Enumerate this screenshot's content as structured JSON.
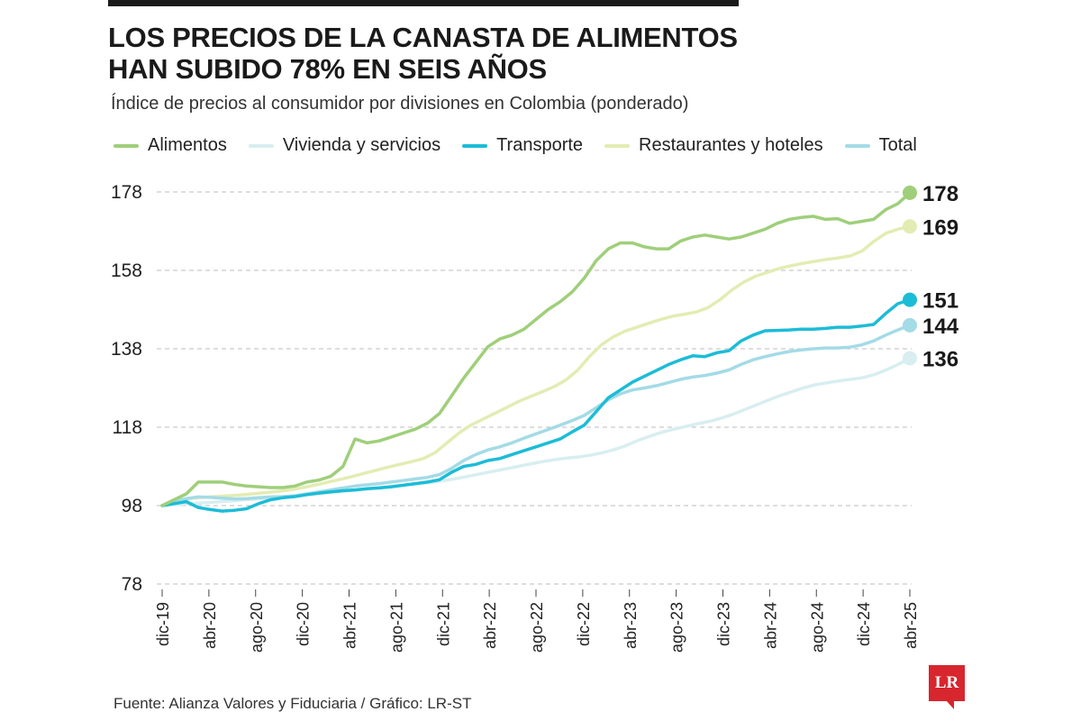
{
  "header": {
    "title_line1": "LOS PRECIOS DE LA CANASTA DE ALIMENTOS",
    "title_line2": "HAN SUBIDO 78% EN SEIS AÑOS",
    "subtitle": "Índice de precios al consumidor por divisiones en Colombia (ponderado)"
  },
  "footer": {
    "source": "Fuente: Alianza Valores y Fiduciaria / Gráfico: LR-ST",
    "logo_text": "LR"
  },
  "colors": {
    "alimentos": "#9fcf7a",
    "vivienda": "#d8eef0",
    "transporte": "#1cbcd7",
    "restaurantes": "#e3ecb3",
    "total": "#a3dbe6",
    "grid": "#bfbfbf",
    "text": "#1a1a1a",
    "logo": "#d7262e"
  },
  "chart_data": {
    "type": "line",
    "title": "LOS PRECIOS DE LA CANASTA DE ALIMENTOS HAN SUBIDO 78% EN SEIS AÑOS",
    "subtitle": "Índice de precios al consumidor por divisiones en Colombia (ponderado)",
    "y_ticks": [
      "178",
      "158",
      "138",
      "118",
      "98",
      "78"
    ],
    "ylim": [
      78,
      178
    ],
    "x_ticks": [
      "dic-19",
      "abr-20",
      "ago-20",
      "dic-20",
      "abr-21",
      "ago-21",
      "dic-21",
      "abr-22",
      "ago-22",
      "dic-22",
      "abr-23",
      "ago-23",
      "dic-23",
      "abr-24",
      "ago-24",
      "dic-24",
      "abr-25"
    ],
    "x_range": [
      "dic-19",
      "abr-25"
    ],
    "grid": true,
    "grid_style": "dashed horizontal",
    "legend_position": "top",
    "series": [
      {
        "name": "Alimentos",
        "color": "#9fcf7a",
        "end_label": "178",
        "values": [
          98.0,
          99.5,
          101.0,
          104.0,
          104.0,
          104.0,
          103.4,
          103.0,
          102.8,
          102.6,
          102.6,
          103.0,
          104.0,
          104.5,
          105.5,
          108.0,
          115.0,
          114.0,
          114.5,
          115.5,
          116.5,
          117.5,
          119.0,
          121.5,
          126.0,
          130.5,
          134.5,
          138.5,
          140.5,
          141.5,
          143.0,
          145.5,
          148.0,
          150.0,
          152.5,
          156.0,
          160.5,
          163.5,
          165.0,
          165.0,
          164.0,
          163.5,
          163.5,
          165.5,
          166.5,
          167.0,
          166.5,
          166.0,
          166.5,
          167.5,
          168.5,
          170.0,
          171.0,
          171.5,
          171.8,
          171.0,
          171.2,
          170.0,
          170.5,
          171.0,
          173.5,
          175.0,
          177.8
        ]
      },
      {
        "name": "Vivienda y servicios",
        "color": "#d8eef0",
        "end_label": "136",
        "values": [
          98.0,
          98.2,
          98.4,
          98.6,
          98.8,
          99.0,
          99.2,
          99.5,
          99.7,
          99.9,
          100.1,
          100.3,
          100.7,
          101.0,
          101.3,
          101.6,
          101.9,
          102.2,
          102.5,
          102.8,
          103.1,
          103.4,
          103.7,
          104.0,
          104.5,
          105.0,
          105.6,
          106.2,
          106.8,
          107.4,
          108.0,
          108.6,
          109.2,
          109.7,
          110.1,
          110.4,
          110.8,
          111.4,
          112.2,
          113.2,
          114.5,
          115.6,
          116.6,
          117.4,
          118.1,
          118.8,
          119.4,
          120.2,
          121.2,
          122.4,
          123.6,
          124.8,
          126.0,
          127.0,
          128.0,
          128.8,
          129.3,
          129.8,
          130.2,
          130.6,
          131.4,
          132.6,
          134.0,
          135.6
        ]
      },
      {
        "name": "Transporte",
        "color": "#1cbcd7",
        "end_label": "151",
        "values": [
          98.0,
          98.5,
          99.0,
          97.5,
          97.0,
          96.6,
          96.8,
          97.2,
          98.5,
          99.5,
          100.0,
          100.3,
          100.8,
          101.2,
          101.5,
          101.8,
          102.0,
          102.3,
          102.5,
          102.8,
          103.2,
          103.6,
          104.0,
          104.6,
          106.5,
          108.0,
          108.5,
          109.5,
          110.0,
          111.0,
          112.0,
          113.0,
          114.0,
          115.0,
          116.8,
          118.5,
          122.0,
          125.5,
          127.5,
          129.5,
          131.0,
          132.5,
          134.0,
          135.2,
          136.2,
          136.0,
          137.0,
          137.5,
          140.0,
          141.5,
          142.6,
          142.7,
          142.8,
          143.0,
          143.0,
          143.2,
          143.5,
          143.5,
          143.8,
          144.2,
          147.0,
          149.5,
          150.5
        ]
      },
      {
        "name": "Restaurantes y hoteles",
        "color": "#e3ecb3",
        "end_label": "169",
        "values": [
          98.0,
          98.8,
          99.6,
          100.0,
          100.2,
          100.4,
          100.6,
          100.8,
          101.1,
          101.4,
          101.7,
          102.1,
          102.7,
          103.3,
          104.0,
          104.7,
          105.4,
          106.2,
          107.0,
          107.8,
          108.5,
          109.2,
          110.0,
          111.5,
          114.0,
          116.5,
          118.5,
          120.0,
          121.5,
          123.0,
          124.5,
          125.8,
          127.0,
          128.3,
          130.0,
          132.5,
          136.0,
          139.0,
          141.0,
          142.5,
          143.5,
          144.5,
          145.5,
          146.3,
          146.8,
          147.4,
          148.5,
          150.5,
          153.0,
          155.0,
          156.5,
          157.5,
          158.5,
          159.2,
          159.8,
          160.3,
          160.8,
          161.2,
          161.7,
          163.0,
          165.5,
          167.5,
          168.5,
          169.2
        ]
      },
      {
        "name": "Total",
        "color": "#a3dbe6",
        "end_label": "144",
        "values": [
          98.0,
          99.0,
          99.8,
          100.2,
          100.1,
          99.9,
          99.7,
          99.8,
          100.0,
          100.2,
          100.3,
          100.5,
          101.0,
          101.5,
          102.0,
          102.5,
          103.0,
          103.3,
          103.6,
          104.0,
          104.4,
          104.8,
          105.2,
          105.9,
          107.5,
          109.5,
          111.0,
          112.2,
          113.0,
          114.0,
          115.2,
          116.3,
          117.4,
          118.5,
          119.7,
          121.0,
          123.0,
          125.0,
          126.5,
          127.5,
          128.0,
          128.6,
          129.4,
          130.2,
          130.8,
          131.2,
          131.8,
          132.6,
          134.0,
          135.2,
          136.0,
          136.7,
          137.3,
          137.7,
          138.0,
          138.2,
          138.2,
          138.4,
          139.0,
          140.0,
          141.5,
          142.8,
          144.0
        ]
      }
    ]
  }
}
